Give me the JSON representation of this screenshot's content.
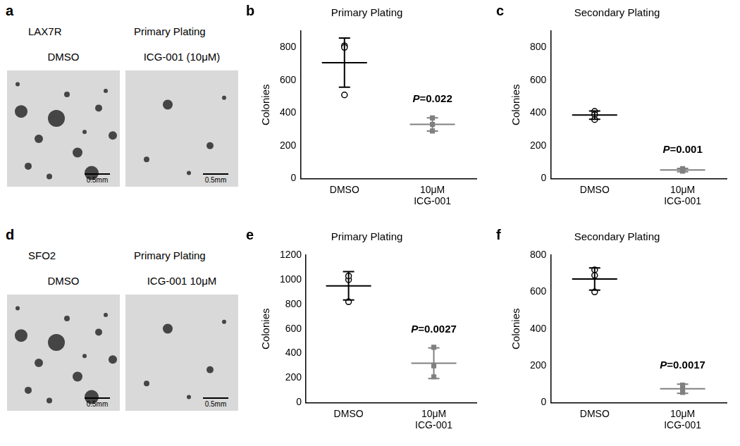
{
  "image_panels": [
    {
      "panel_label": "a",
      "sample": "LAX7R",
      "title": "Primary Plating",
      "images": [
        {
          "caption": "DMSO",
          "scale_bar": "0.5mm"
        },
        {
          "caption": "ICG-001 (10μM)",
          "scale_bar": "0.5mm"
        }
      ]
    },
    {
      "panel_label": "d",
      "sample": "SFO2",
      "title": "Primary Plating",
      "images": [
        {
          "caption": "DMSO",
          "scale_bar": "0.5mm"
        },
        {
          "caption": "ICG-001 10μM",
          "scale_bar": "0.5mm"
        }
      ]
    }
  ],
  "chart_data": [
    {
      "panel_label": "b",
      "type": "scatter",
      "title": "Primary Plating",
      "y_label": "Colonies",
      "categories": [
        "DMSO",
        "10μM ICG-001"
      ],
      "values": [
        707,
        330
      ],
      "error": [
        150,
        40
      ],
      "points": [
        [
          810,
          800,
          510
        ],
        [
          330,
          370,
          290
        ]
      ],
      "colors": [
        "#000000",
        "#808080"
      ],
      "annotations": [
        {
          "text": "P=0.022"
        }
      ],
      "ylim": [
        0,
        900
      ],
      "yticks": [
        0,
        200,
        400,
        600,
        800
      ],
      "grid": false
    },
    {
      "panel_label": "c",
      "type": "scatter",
      "title": "Secondary Plating",
      "y_label": "Colonies",
      "categories": [
        "DMSO",
        "10μM ICG-001"
      ],
      "values": [
        387,
        52
      ],
      "error": [
        25,
        10
      ],
      "points": [
        [
          410,
          390,
          360
        ],
        [
          60,
          50,
          45
        ]
      ],
      "colors": [
        "#000000",
        "#808080"
      ],
      "annotations": [
        {
          "text": "P=0.001"
        }
      ],
      "ylim": [
        0,
        900
      ],
      "yticks": [
        0,
        200,
        400,
        600,
        800
      ],
      "grid": false
    },
    {
      "panel_label": "e",
      "type": "scatter",
      "title": "Primary Plating",
      "y_label": "Colonies",
      "categories": [
        "DMSO",
        "10μM ICG-001"
      ],
      "values": [
        950,
        320
      ],
      "error": [
        115,
        125
      ],
      "points": [
        [
          1000,
          1030,
          820
        ],
        [
          450,
          300,
          210
        ]
      ],
      "colors": [
        "#000000",
        "#808080"
      ],
      "annotations": [
        {
          "text": "P=0.0027"
        }
      ],
      "ylim": [
        0,
        1200
      ],
      "yticks": [
        0,
        200,
        400,
        600,
        800,
        1000,
        1200
      ],
      "grid": false
    },
    {
      "panel_label": "f",
      "type": "scatter",
      "title": "Secondary Plating",
      "y_label": "Colonies",
      "categories": [
        "DMSO",
        "10μM ICG-001"
      ],
      "values": [
        670,
        75
      ],
      "error": [
        60,
        25
      ],
      "points": [
        [
          720,
          690,
          600
        ],
        [
          95,
          75,
          55
        ]
      ],
      "colors": [
        "#000000",
        "#808080"
      ],
      "annotations": [
        {
          "text": "P=0.0017"
        }
      ],
      "ylim": [
        0,
        800
      ],
      "yticks": [
        0,
        200,
        400,
        600,
        800
      ],
      "grid": false
    }
  ]
}
